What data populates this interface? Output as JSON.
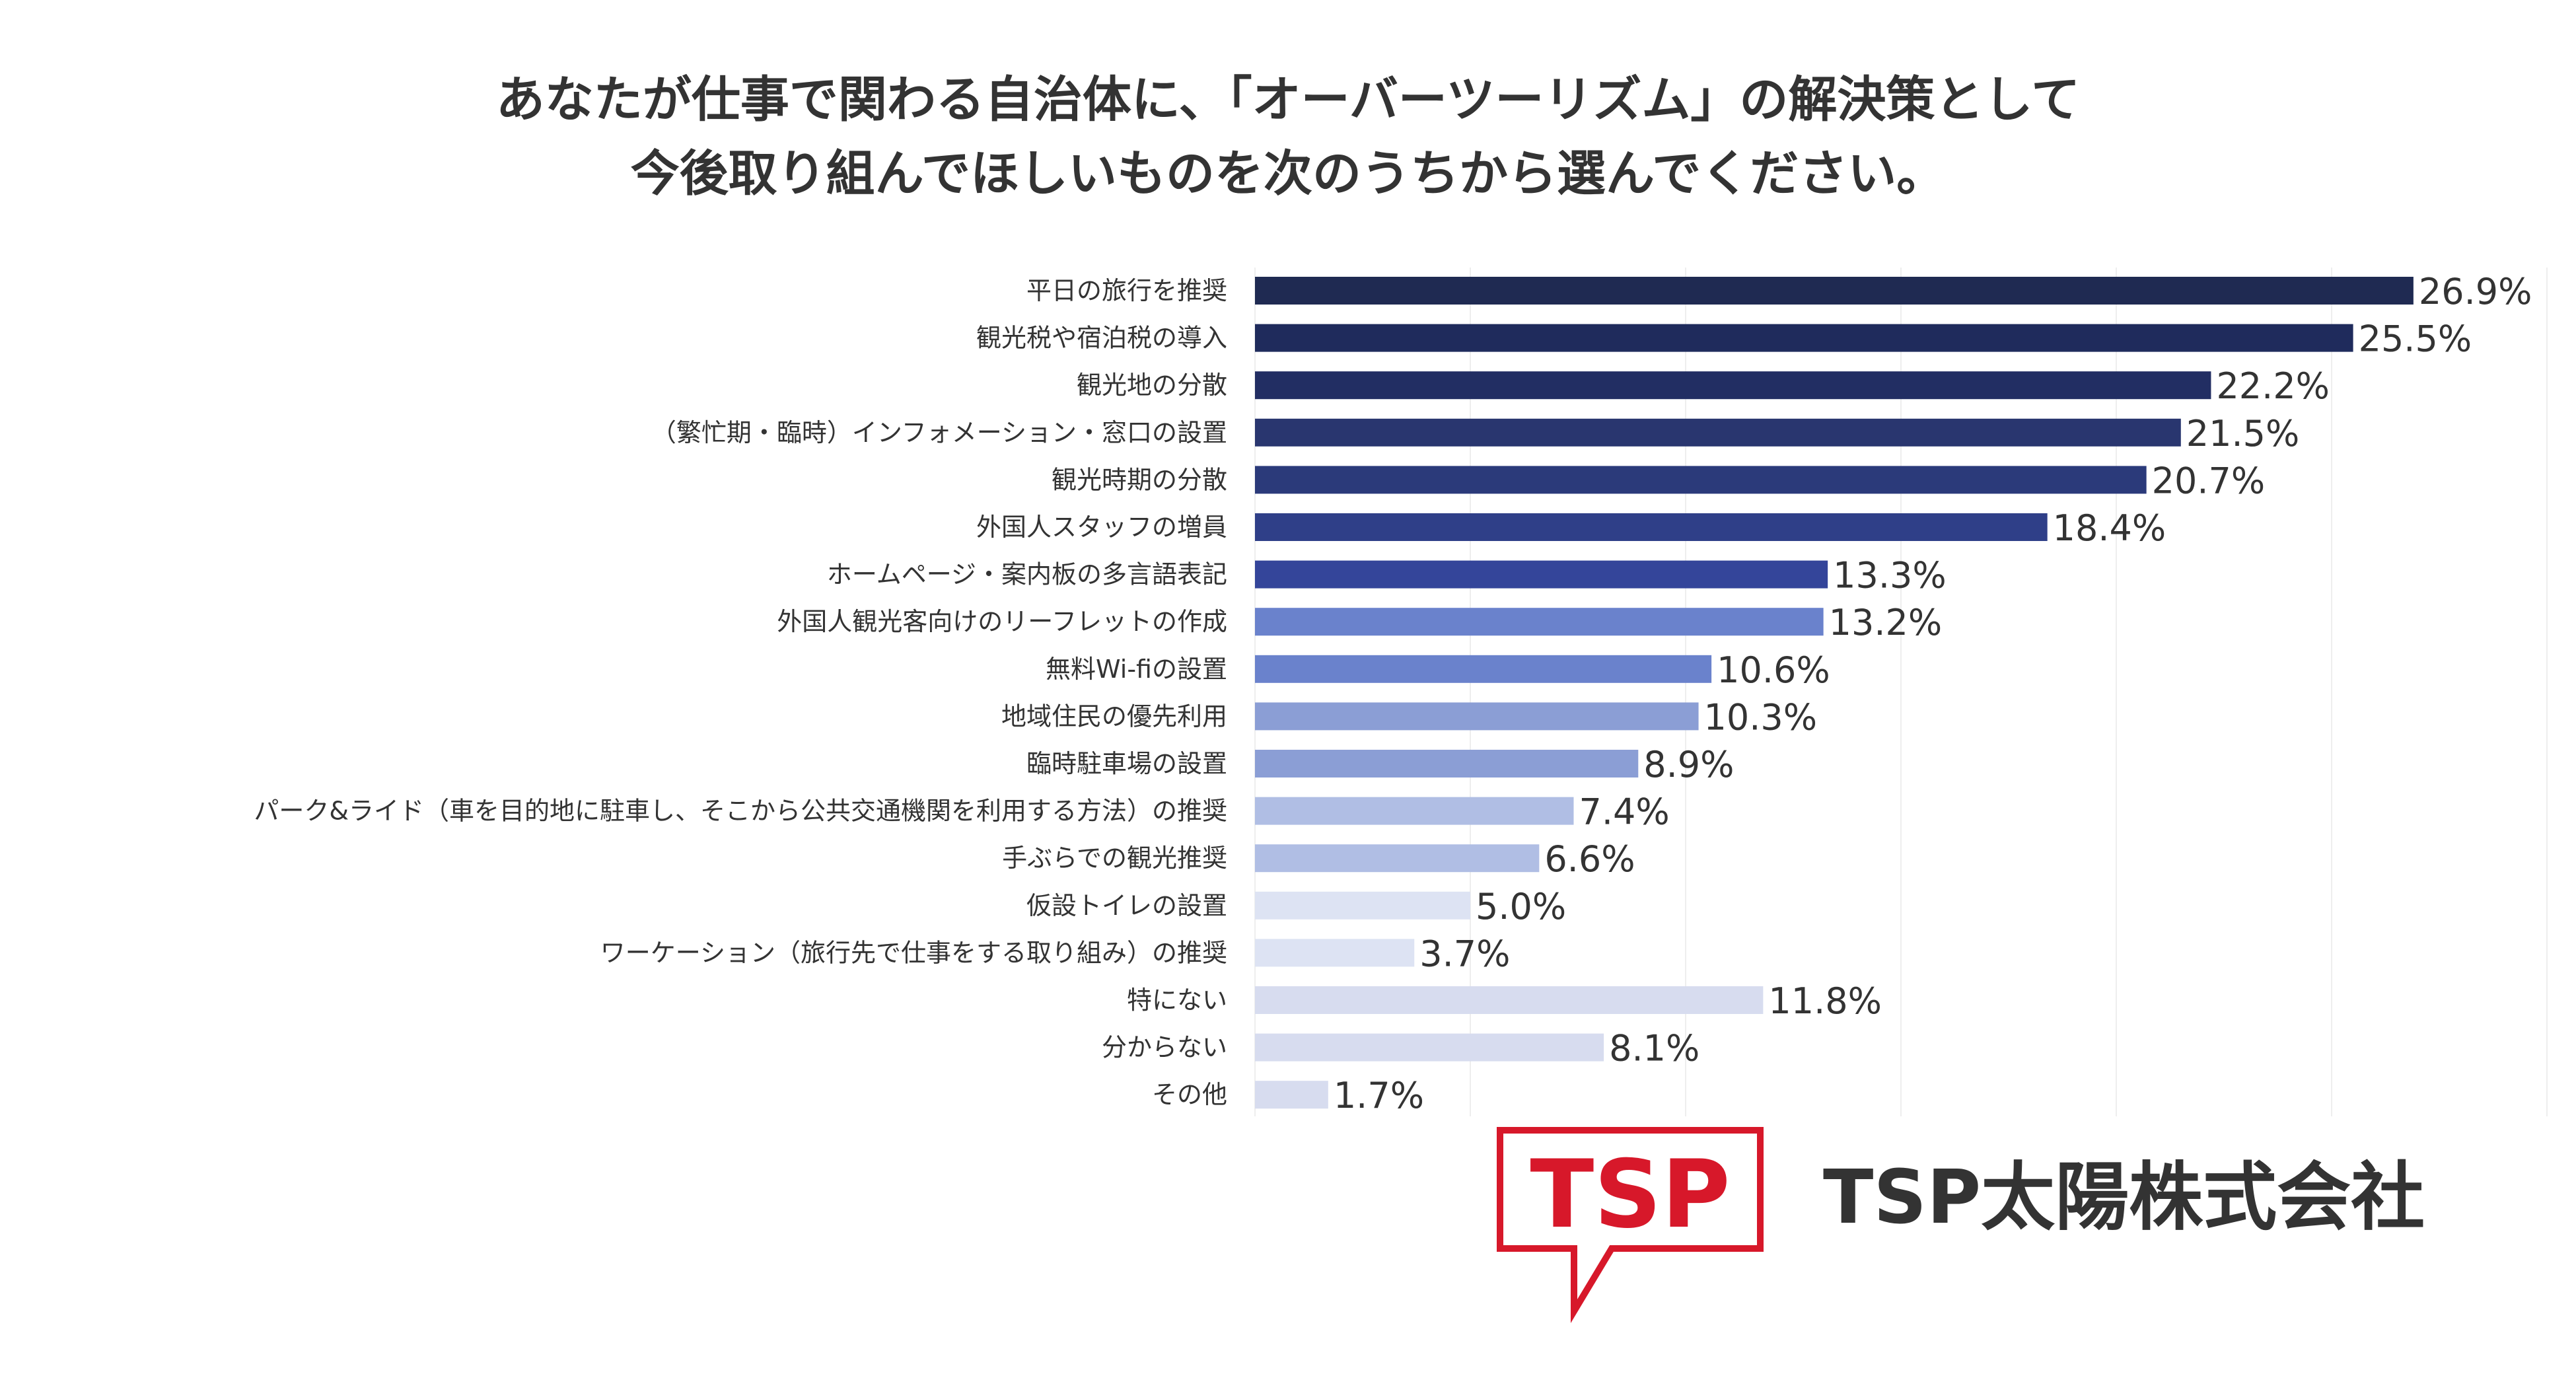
{
  "title": {
    "line1": "あなたが仕事で関わる自治体に、「オーバーツーリズム」の解決策として",
    "line2": "今後取り組んでほしいものを次のうちから選んでください。"
  },
  "chart_data": {
    "type": "bar",
    "orientation": "horizontal",
    "title": "あなたが仕事で関わる自治体に、「オーバーツーリズム」の解決策として今後取り組んでほしいものを次のうちから選んでください。",
    "xlabel": "",
    "ylabel": "",
    "unit": "%",
    "xlim": [
      0,
      30
    ],
    "grid": true,
    "legend": "none",
    "categories": [
      "平日の旅行を推奨",
      "観光税や宿泊税の導入",
      "観光地の分散",
      "（繁忙期・臨時）インフォメーション・窓口の設置",
      "観光時期の分散",
      "外国人スタッフの増員",
      "ホームページ・案内板の多言語表記",
      "外国人観光客向けのリーフレットの作成",
      "無料Wi-fiの設置",
      "地域住民の優先利用",
      "臨時駐車場の設置",
      "パーク&ライド（車を目的地に駐車し、そこから公共交通機関を利用する方法）の推奨",
      "手ぶらでの観光推奨",
      "仮設トイレの設置",
      "ワーケーション（旅行先で仕事をする取り組み）の推奨",
      "特にない",
      "分からない",
      "その他"
    ],
    "values": [
      26.9,
      25.5,
      22.2,
      21.5,
      20.7,
      18.4,
      13.3,
      13.2,
      10.6,
      10.3,
      8.9,
      7.4,
      6.6,
      5.0,
      3.7,
      11.8,
      8.1,
      1.7
    ],
    "value_labels": [
      "26.9%",
      "25.5%",
      "22.2%",
      "21.5%",
      "20.7%",
      "18.4%",
      "13.3%",
      "13.2%",
      "10.6%",
      "10.3%",
      "8.9%",
      "7.4%",
      "6.6%",
      "5.0%",
      "3.7%",
      "11.8%",
      "8.1%",
      "1.7%"
    ],
    "bar_colors": [
      "#1f2a52",
      "#1f2b5c",
      "#222e63",
      "#29366f",
      "#2b3a7a",
      "#2f3f88",
      "#34459a",
      "#6a82cc",
      "#6a82cc",
      "#8b9ed5",
      "#8b9ed5",
      "#b0bee4",
      "#b0bee4",
      "#dde3f3",
      "#dde3f3",
      "#d7dcef",
      "#d7dcef",
      "#d7dcef"
    ],
    "grid_color": "#eeeeee"
  },
  "brand": {
    "logo_text": "TSP",
    "company_name": "TSP太陽株式会社",
    "logo_color": "#d7182a"
  }
}
